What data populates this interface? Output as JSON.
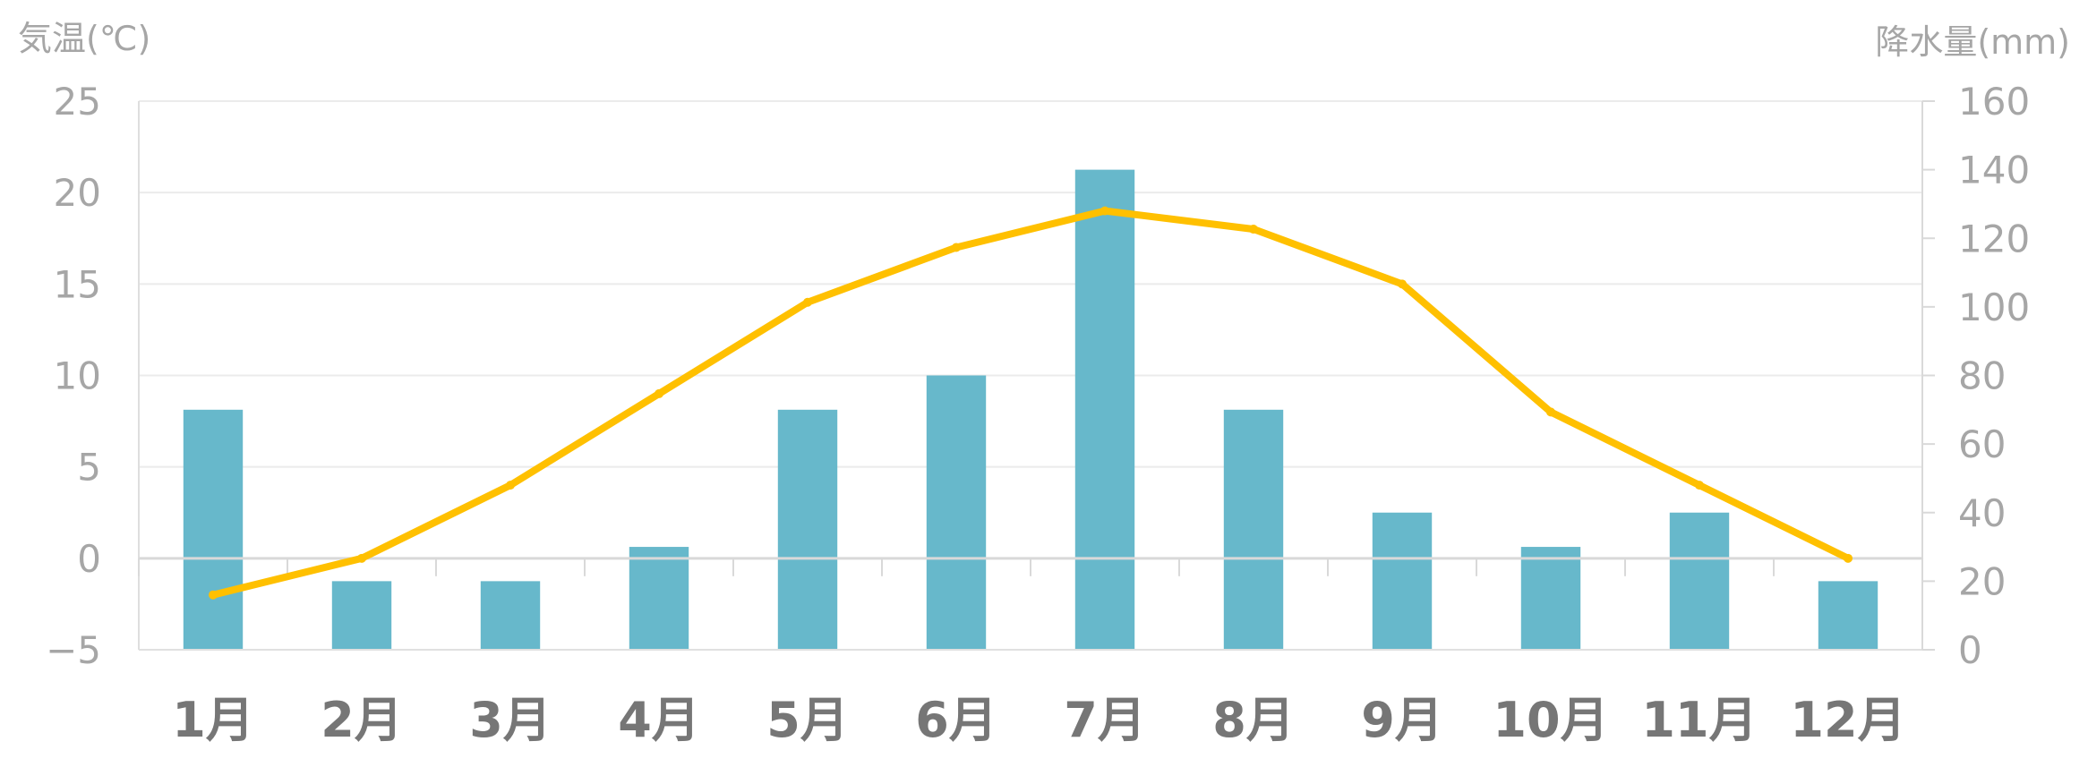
{
  "chart_data": {
    "type": "bar+line",
    "categories": [
      "1月",
      "2月",
      "3月",
      "4月",
      "5月",
      "6月",
      "7月",
      "8月",
      "9月",
      "10月",
      "11月",
      "12月"
    ],
    "series": [
      {
        "kind": "bar",
        "axis": "right",
        "color": "#67b8cb",
        "values": [
          70,
          20,
          20,
          30,
          70,
          80,
          140,
          70,
          40,
          30,
          40,
          20
        ]
      },
      {
        "kind": "line",
        "axis": "left",
        "color": "#ffc000",
        "values": [
          -2,
          0,
          4,
          9,
          14,
          17,
          19,
          18,
          15,
          8,
          4,
          0
        ]
      }
    ],
    "left_axis": {
      "label": "気温(℃)",
      "min": -5,
      "max": 25,
      "ticks": [
        25,
        20,
        15,
        10,
        5,
        0,
        -5
      ]
    },
    "right_axis": {
      "label": "降水量(mm)",
      "min": 0,
      "max": 160,
      "ticks": [
        160,
        140,
        120,
        100,
        80,
        60,
        40,
        20,
        0
      ]
    },
    "grid": true,
    "legend": "none"
  }
}
